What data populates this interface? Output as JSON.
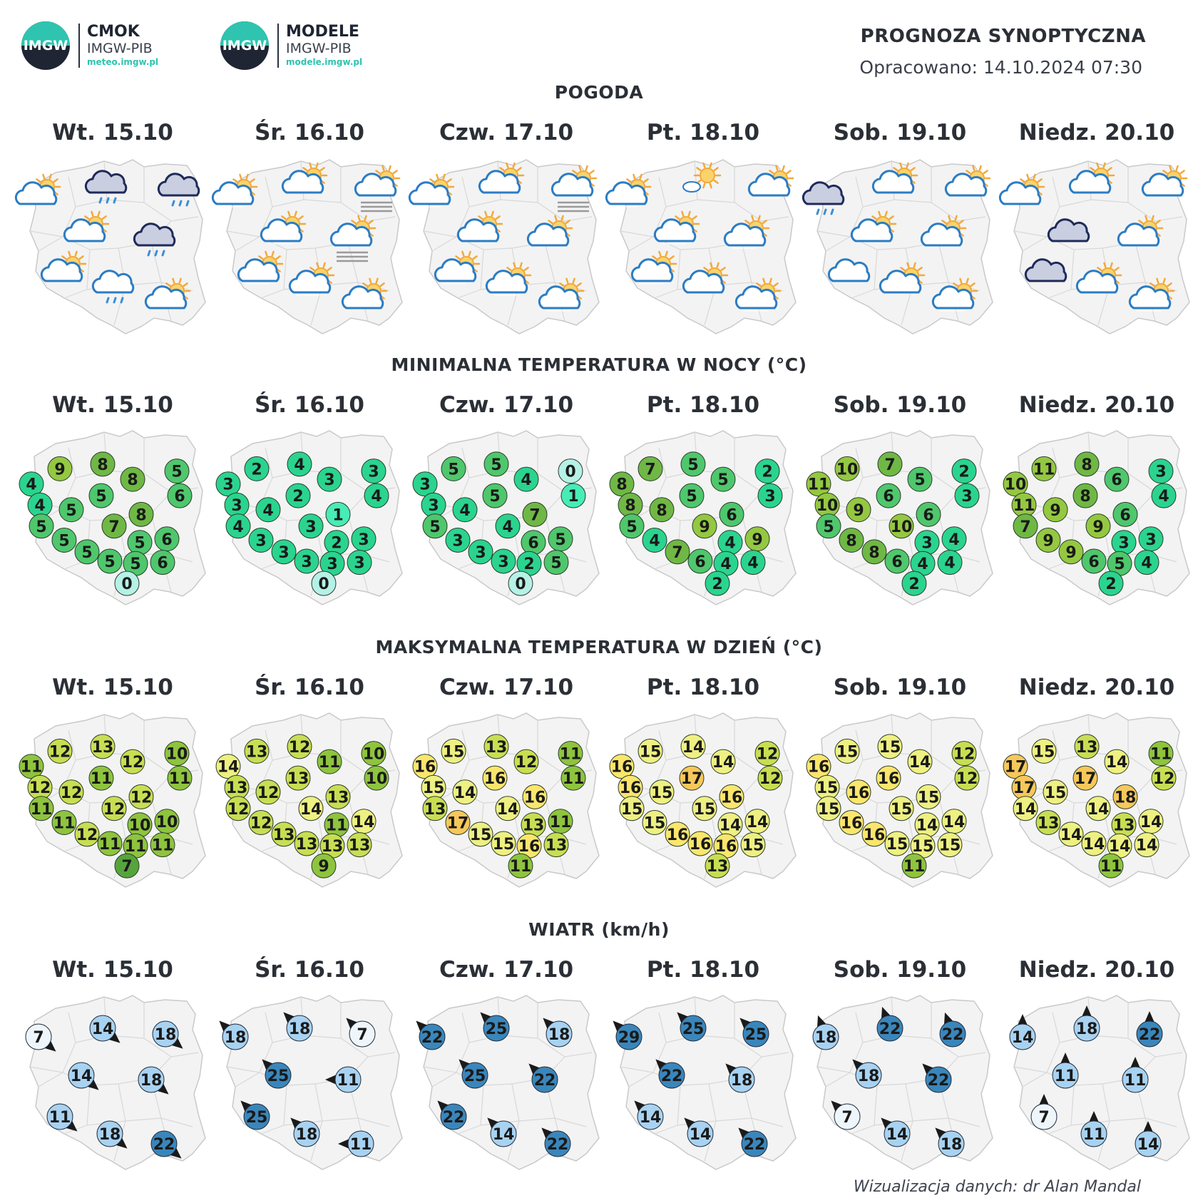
{
  "header": {
    "logo_cmok": {
      "badge": "IMGW",
      "name": "CMOK",
      "org": "IMGW-PIB",
      "url": "meteo.imgw.pl"
    },
    "logo_modele": {
      "badge": "IMGW",
      "name": "MODELE",
      "org": "IMGW-PIB",
      "url": "modele.imgw.pl"
    },
    "title": "PROGNOZA SYNOPTYCZNA",
    "issued": "Opracowano: 14.10.2024 07:30"
  },
  "days": [
    "Wt. 15.10",
    "Śr. 16.10",
    "Czw. 17.10",
    "Pt. 18.10",
    "Sob. 19.10",
    "Niedz. 20.10"
  ],
  "sections": {
    "weather": {
      "title": "POGODA"
    },
    "tmin": {
      "title": "MINIMALNA TEMPERATURA W NOCY (°C)"
    },
    "tmax": {
      "title": "MAKSYMALNA TEMPERATURA W DZIEŃ (°C)"
    },
    "wind": {
      "title": "WIATR (km/h)"
    }
  },
  "weather": [
    [
      "partly-sunny",
      "cloud-rain-dark",
      "cloud-rain-dark",
      "partly-sunny",
      "cloud-rain-dark",
      "partly-cloudy",
      "cloud-rain",
      "partly-cloudy"
    ],
    [
      "mostly-sunny",
      "partly-cloudy",
      "fog-cloud",
      "mostly-sunny",
      "fog-cloud",
      "mostly-sunny",
      "mostly-sunny",
      "partly-sunny"
    ],
    [
      "mostly-sunny",
      "partly-cloudy",
      "fog-cloud",
      "partly-cloudy",
      "partly-sunny",
      "mostly-sunny",
      "mostly-sunny",
      "mostly-sunny"
    ],
    [
      "mostly-sunny",
      "sun-small-cloud",
      "mostly-sunny",
      "mostly-sunny",
      "mostly-sunny",
      "mostly-sunny",
      "partly-sunny",
      "mostly-sunny"
    ],
    [
      "cloud-rain-dark",
      "partly-cloudy",
      "partly-cloudy",
      "partly-cloudy",
      "partly-cloudy",
      "cloudy",
      "partly-cloudy",
      "mostly-sunny"
    ],
    [
      "partly-cloudy",
      "partly-cloudy",
      "partly-cloudy",
      "cloudy-dark",
      "partly-cloudy",
      "cloudy-dark",
      "partly-cloudy",
      "mostly-sunny"
    ]
  ],
  "tmin": [
    [
      4,
      9,
      8,
      8,
      5,
      6,
      5,
      4,
      5,
      8,
      7,
      5,
      5,
      5,
      6,
      5,
      5,
      5,
      6,
      0
    ],
    [
      3,
      2,
      4,
      3,
      3,
      4,
      2,
      3,
      4,
      1,
      3,
      4,
      3,
      2,
      3,
      3,
      3,
      3,
      3,
      0
    ],
    [
      3,
      5,
      5,
      4,
      0,
      1,
      5,
      3,
      4,
      7,
      4,
      5,
      3,
      6,
      5,
      3,
      3,
      2,
      5,
      0
    ],
    [
      8,
      7,
      5,
      5,
      2,
      3,
      5,
      8,
      8,
      6,
      9,
      5,
      4,
      4,
      9,
      7,
      6,
      4,
      4,
      2
    ],
    [
      11,
      10,
      7,
      5,
      2,
      3,
      6,
      10,
      9,
      6,
      10,
      5,
      8,
      3,
      4,
      8,
      6,
      4,
      4,
      2
    ],
    [
      10,
      11,
      8,
      6,
      3,
      4,
      8,
      11,
      9,
      6,
      9,
      7,
      9,
      3,
      3,
      9,
      6,
      5,
      4,
      2
    ]
  ],
  "tmax": [
    [
      11,
      12,
      13,
      12,
      10,
      11,
      11,
      12,
      12,
      12,
      12,
      11,
      11,
      10,
      10,
      12,
      11,
      11,
      11,
      7
    ],
    [
      14,
      13,
      12,
      11,
      10,
      10,
      13,
      13,
      12,
      13,
      14,
      12,
      12,
      11,
      14,
      13,
      13,
      13,
      13,
      9
    ],
    [
      16,
      15,
      13,
      12,
      11,
      11,
      16,
      15,
      14,
      16,
      14,
      13,
      17,
      13,
      11,
      15,
      15,
      16,
      13,
      11
    ],
    [
      16,
      15,
      14,
      14,
      12,
      12,
      17,
      16,
      15,
      16,
      15,
      15,
      15,
      14,
      14,
      16,
      16,
      16,
      15,
      13
    ],
    [
      16,
      15,
      15,
      14,
      12,
      12,
      16,
      15,
      16,
      15,
      15,
      15,
      16,
      14,
      14,
      16,
      15,
      15,
      15,
      11
    ],
    [
      17,
      15,
      13,
      14,
      11,
      12,
      17,
      17,
      15,
      18,
      14,
      14,
      13,
      13,
      14,
      14,
      14,
      14,
      14,
      11
    ]
  ],
  "wind": [
    [
      7,
      14,
      18,
      14,
      18,
      11,
      18,
      22
    ],
    [
      18,
      18,
      7,
      25,
      11,
      25,
      18,
      11
    ],
    [
      22,
      25,
      18,
      25,
      22,
      22,
      14,
      22
    ],
    [
      29,
      25,
      25,
      22,
      18,
      14,
      14,
      22
    ],
    [
      18,
      22,
      22,
      18,
      22,
      7,
      14,
      18
    ],
    [
      14,
      18,
      22,
      11,
      11,
      7,
      11,
      14
    ]
  ],
  "legend_colors": {
    "tmin": [
      "#b5f1e6",
      "#47ecb7",
      "#2ad48f",
      "#4fc76c",
      "#6fb845",
      "#94c841"
    ],
    "tmax": [
      "#57a43c",
      "#8ec43e",
      "#c8de52",
      "#eef082",
      "#fbe66c",
      "#f6c85a"
    ],
    "wind": [
      "#eef6fb",
      "#a8d2f1",
      "#62a9dd",
      "#3a86bb"
    ]
  },
  "credit": "Wizualizacja danych: dr Alan Mandal"
}
